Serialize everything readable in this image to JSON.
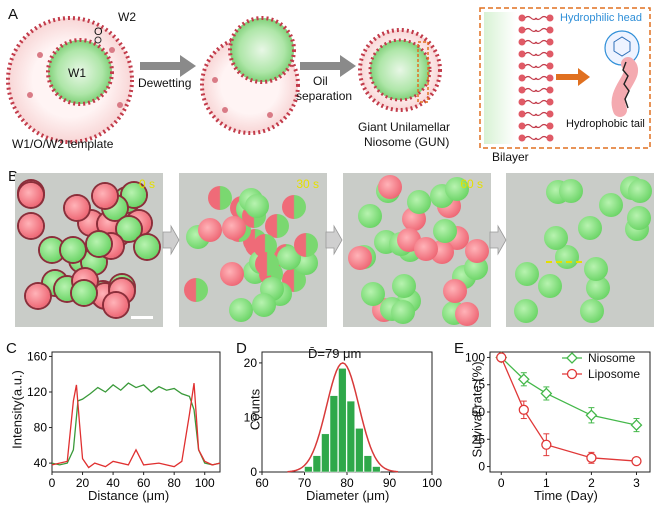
{
  "panelA": {
    "letter": "A",
    "w2": "W2",
    "o": "O",
    "w1": "W1",
    "template_label": "W1/O/W2 template",
    "step1": "Dewetting",
    "step2_line1": "Oil",
    "step2_line2": "separation",
    "gun_line1": "Giant Unilamellar",
    "gun_line2": "Niosome (GUN)",
    "bilayer": "Bilayer",
    "head": "Hydrophilic head",
    "tail": "Hydrophobic tail",
    "colors": {
      "head": "#2f8fd8",
      "arrow": "#e07020",
      "membrane": "#c23b4a"
    }
  },
  "panelB": {
    "letter": "B",
    "times": [
      "0 s",
      "30 s",
      "60 s",
      ""
    ]
  },
  "panelC": {
    "letter": "C",
    "chart_data": {
      "type": "line",
      "xlabel": "Distance (μm)",
      "ylabel": "Intensity(a.u.)",
      "xlim": [
        0,
        110
      ],
      "ylim": [
        30,
        165
      ],
      "xticks": [
        0,
        20,
        40,
        60,
        80,
        100
      ],
      "yticks": [
        40,
        80,
        120,
        160
      ],
      "series": [
        {
          "color": "#3a9a3a",
          "x": [
            0,
            5,
            10,
            14,
            17,
            20,
            25,
            30,
            35,
            40,
            45,
            50,
            55,
            60,
            65,
            70,
            75,
            80,
            85,
            90,
            93,
            96,
            100,
            105,
            110
          ],
          "y": [
            40,
            38,
            40,
            55,
            110,
            112,
            118,
            125,
            120,
            128,
            122,
            130,
            125,
            128,
            120,
            126,
            122,
            124,
            118,
            115,
            100,
            55,
            40,
            38,
            40
          ]
        },
        {
          "color": "#e03030",
          "x": [
            0,
            5,
            10,
            14,
            16,
            18,
            20,
            24,
            28,
            35,
            40,
            50,
            55,
            60,
            70,
            80,
            85,
            90,
            93,
            94,
            96,
            100,
            105,
            110
          ],
          "y": [
            38,
            40,
            42,
            110,
            128,
            85,
            45,
            35,
            40,
            36,
            42,
            38,
            55,
            38,
            40,
            36,
            42,
            95,
            130,
            105,
            55,
            42,
            38,
            40
          ]
        }
      ]
    }
  },
  "panelD": {
    "letter": "D",
    "title": "D̄=79 μm",
    "chart_data": {
      "type": "bar",
      "xlabel": "Diameter (μm)",
      "ylabel": "Counts",
      "xlim": [
        60,
        100
      ],
      "ylim": [
        0,
        22
      ],
      "xticks": [
        60,
        70,
        80,
        90,
        100
      ],
      "yticks": [
        0,
        10,
        20
      ],
      "bins": [
        {
          "x": 71,
          "value": 1
        },
        {
          "x": 73,
          "value": 3
        },
        {
          "x": 75,
          "value": 7
        },
        {
          "x": 77,
          "value": 14
        },
        {
          "x": 79,
          "value": 19
        },
        {
          "x": 81,
          "value": 13
        },
        {
          "x": 83,
          "value": 8
        },
        {
          "x": 85,
          "value": 3
        },
        {
          "x": 87,
          "value": 1
        }
      ],
      "fit": {
        "mean": 79,
        "sd": 3.8,
        "peak": 20
      },
      "colors": {
        "bar": "#2fa84a",
        "fit": "#d83a3a"
      }
    }
  },
  "panelE": {
    "letter": "E",
    "chart_data": {
      "type": "line",
      "xlabel": "Time (Day)",
      "ylabel": "Survival rate (%)",
      "xlim": [
        -0.25,
        3.3
      ],
      "ylim": [
        -5,
        105
      ],
      "xticks": [
        0,
        1,
        2,
        3
      ],
      "yticks": [
        0,
        25,
        50,
        75,
        100
      ],
      "legend_position": "top-right",
      "series": [
        {
          "name": "Niosome",
          "color": "#44b84a",
          "marker": "diamond",
          "x": [
            0,
            0.5,
            1,
            2,
            3
          ],
          "y": [
            100,
            80,
            67,
            47,
            38
          ],
          "err": [
            0,
            6,
            6,
            7,
            6
          ]
        },
        {
          "name": "Liposome",
          "color": "#e03838",
          "marker": "circle",
          "x": [
            0,
            0.5,
            1,
            2,
            3
          ],
          "y": [
            100,
            52,
            20,
            8,
            5
          ],
          "err": [
            0,
            8,
            10,
            5,
            2
          ]
        }
      ]
    }
  }
}
